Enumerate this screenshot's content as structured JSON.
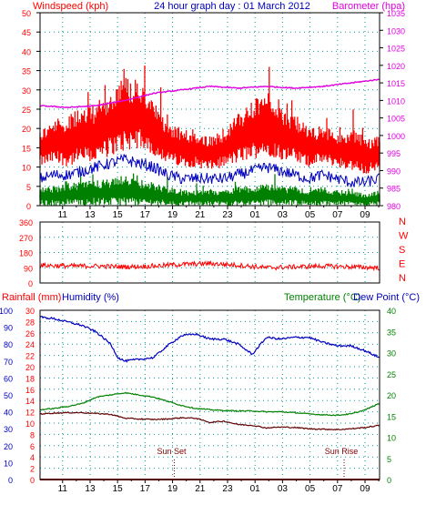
{
  "title": "24 hour graph day : 01 March 2012",
  "colors": {
    "wind_speed": "#ff0000",
    "wind_avg": "#0000c0",
    "wind_low": "#008000",
    "barometer": "#e000e0",
    "direction": "#ff0000",
    "humidity": "#0000c0",
    "temperature": "#008000",
    "dewpoint": "#600000",
    "rain": "#a00000",
    "label_red": "#ff0000",
    "label_blue": "#0000c0",
    "label_green": "#008000",
    "label_magenta": "#e000e0",
    "sun_text": "#800000"
  },
  "chart_data": [
    {
      "type": "line",
      "name": "wind-and-barometer",
      "x_tick_labels": [
        "11",
        "13",
        "15",
        "17",
        "19",
        "21",
        "23",
        "01",
        "03",
        "05",
        "07",
        "09"
      ],
      "left_axis_label": "Windspeed (kph)",
      "left_ylim": [
        0,
        50
      ],
      "left_ticks": [
        "0",
        "5",
        "10",
        "15",
        "20",
        "25",
        "30",
        "35",
        "40",
        "45",
        "50"
      ],
      "right_axis_label": "Barometer (hpa)",
      "right_ylim": [
        980,
        1035
      ],
      "right_ticks": [
        "980",
        "985",
        "990",
        "995",
        "1000",
        "1005",
        "1010",
        "1015",
        "1020",
        "1025",
        "1030",
        "1035"
      ],
      "grid": true,
      "series": [
        {
          "name": "Windspeed (kph)",
          "key": "wind_speed",
          "axis": "left",
          "style": "band",
          "x": [
            0,
            1,
            2,
            3,
            4,
            5,
            6,
            7,
            8,
            9,
            10,
            11,
            12,
            13,
            14,
            15,
            16,
            17,
            18,
            19,
            20,
            21,
            22,
            23,
            24
          ],
          "low": [
            10,
            11,
            10,
            11,
            11,
            13,
            14,
            15,
            13,
            11,
            10,
            10,
            9,
            10,
            11,
            12,
            13,
            12,
            11,
            10,
            11,
            10,
            9,
            8,
            9
          ],
          "high": [
            20,
            22,
            24,
            25,
            27,
            30,
            34,
            32,
            27,
            22,
            20,
            19,
            18,
            20,
            24,
            27,
            30,
            25,
            24,
            20,
            21,
            19,
            20,
            18,
            18
          ]
        },
        {
          "name": "Average wind",
          "key": "wind_avg",
          "axis": "left",
          "style": "noisy",
          "x": [
            0,
            1,
            2,
            3,
            4,
            5,
            6,
            7,
            8,
            9,
            10,
            11,
            12,
            13,
            14,
            15,
            16,
            17,
            18,
            19,
            20,
            21,
            22,
            23,
            24
          ],
          "values": [
            7,
            8,
            8,
            9,
            10,
            11,
            12,
            11,
            10,
            8,
            7,
            7,
            7,
            7,
            8,
            9,
            10,
            9,
            8,
            7,
            8,
            7,
            6,
            6,
            7
          ]
        },
        {
          "name": "Wind low",
          "key": "wind_low",
          "axis": "left",
          "style": "band",
          "x": [
            0,
            1,
            2,
            3,
            4,
            5,
            6,
            7,
            8,
            9,
            10,
            11,
            12,
            13,
            14,
            15,
            16,
            17,
            18,
            19,
            20,
            21,
            22,
            23,
            24
          ],
          "low": [
            0,
            0,
            0,
            0,
            0,
            0,
            0,
            0,
            0,
            0,
            0,
            0,
            0,
            0,
            0,
            0,
            0,
            0,
            0,
            0,
            0,
            0,
            0,
            0,
            0
          ],
          "high": [
            5,
            5,
            6,
            6,
            7,
            7,
            8,
            7,
            6,
            5,
            4,
            4,
            4,
            4,
            5,
            5,
            6,
            5,
            5,
            4,
            5,
            4,
            4,
            3,
            4
          ]
        },
        {
          "name": "Barometer (hpa)",
          "key": "barometer",
          "axis": "right",
          "style": "smooth",
          "x": [
            0,
            2,
            4,
            6,
            8,
            10,
            12,
            14,
            16,
            18,
            20,
            22,
            24
          ],
          "values": [
            1008.5,
            1008,
            1008.5,
            1010,
            1012,
            1013,
            1014,
            1013.5,
            1014,
            1013.5,
            1014,
            1015,
            1016
          ]
        }
      ]
    },
    {
      "type": "line",
      "name": "wind-direction",
      "x_tick_labels": [
        "11",
        "13",
        "15",
        "17",
        "19",
        "21",
        "23",
        "01",
        "03",
        "05",
        "07",
        "09"
      ],
      "ylim": [
        0,
        360
      ],
      "y_ticks": [
        "0",
        "90",
        "180",
        "270",
        "360"
      ],
      "compass_labels": [
        "N",
        "W",
        "S",
        "E",
        "N"
      ],
      "grid": true,
      "series": [
        {
          "name": "Wind direction",
          "key": "direction",
          "style": "noisy",
          "x": [
            0,
            2,
            4,
            6,
            8,
            10,
            12,
            14,
            16,
            18,
            20,
            22,
            24
          ],
          "values": [
            105,
            100,
            100,
            95,
            100,
            110,
            115,
            105,
            90,
            95,
            100,
            95,
            90
          ]
        }
      ]
    },
    {
      "type": "line",
      "name": "temperature-humidity-rain",
      "x_tick_labels": [
        "11",
        "13",
        "15",
        "17",
        "19",
        "21",
        "23",
        "01",
        "03",
        "05",
        "07",
        "09"
      ],
      "rain_axis_label": "Rainfall (mm)",
      "rain_ylim": [
        0,
        30
      ],
      "rain_ticks": [
        "0",
        "2",
        "4",
        "6",
        "8",
        "10",
        "12",
        "14",
        "16",
        "18",
        "20",
        "22",
        "24",
        "26",
        "28",
        "30"
      ],
      "humidity_axis_label": "Humidity (%)",
      "humidity_ylim": [
        0,
        100
      ],
      "humidity_ticks": [
        "0",
        "10",
        "20",
        "30",
        "40",
        "50",
        "60",
        "70",
        "80",
        "90",
        "100"
      ],
      "temperature_axis_label": "Temperature (°C)",
      "dewpoint_axis_label": "Dew Point (°C)",
      "temperature_ylim": [
        0,
        40
      ],
      "temperature_ticks": [
        "0",
        "5",
        "10",
        "15",
        "20",
        "25",
        "30",
        "35",
        "40"
      ],
      "annotations": [
        {
          "text": "Sun Set",
          "x": 9.3
        },
        {
          "text": "Sun Rise",
          "x": 21.3
        }
      ],
      "grid": true,
      "series": [
        {
          "name": "Humidity (%)",
          "key": "humidity",
          "axis": "humidity",
          "style": "noisy",
          "x": [
            0,
            1,
            2,
            3,
            4,
            5,
            5.5,
            6,
            7,
            8,
            9,
            10,
            11,
            12,
            13,
            14,
            15,
            16,
            17,
            18,
            19,
            20,
            21,
            22,
            23,
            24
          ],
          "values": [
            96,
            95,
            93,
            91,
            87,
            80,
            72,
            70,
            71,
            72,
            79,
            85,
            86,
            83,
            83,
            80,
            74,
            84,
            83,
            84,
            84,
            81,
            79,
            79,
            76,
            72
          ]
        },
        {
          "name": "Temperature (°C)",
          "key": "temperature",
          "axis": "temperature",
          "style": "noisy",
          "x": [
            0,
            1,
            2,
            3,
            4,
            5,
            6,
            7,
            8,
            9,
            10,
            11,
            12,
            13,
            14,
            15,
            16,
            17,
            18,
            19,
            20,
            21,
            22,
            23,
            24
          ],
          "values": [
            16.5,
            16.8,
            17.3,
            18,
            19.5,
            20,
            20.5,
            20,
            19.5,
            18.5,
            17.5,
            16.8,
            16.5,
            16.3,
            16.2,
            16.2,
            16,
            16,
            15.8,
            15.5,
            15.3,
            15.2,
            15.5,
            16.5,
            18
          ]
        },
        {
          "name": "Dew Point (°C)",
          "key": "dewpoint",
          "axis": "temperature",
          "style": "noisy",
          "x": [
            0,
            1,
            2,
            3,
            4,
            5,
            6,
            7,
            8,
            9,
            10,
            11,
            12,
            13,
            14,
            15,
            16,
            17,
            18,
            19,
            20,
            21,
            22,
            23,
            24
          ],
          "values": [
            15.5,
            15.7,
            15.8,
            15.8,
            15.6,
            15.4,
            14.5,
            14.3,
            14.2,
            14.3,
            14.6,
            14.5,
            13.5,
            13.8,
            13,
            12.8,
            12.2,
            12.4,
            12.3,
            12,
            11.9,
            11.8,
            12,
            12.3,
            12.8
          ]
        },
        {
          "name": "Rainfall (mm)",
          "key": "rain",
          "axis": "rain",
          "style": "smooth",
          "x": [
            0,
            24
          ],
          "values": [
            0,
            0
          ]
        }
      ]
    }
  ]
}
